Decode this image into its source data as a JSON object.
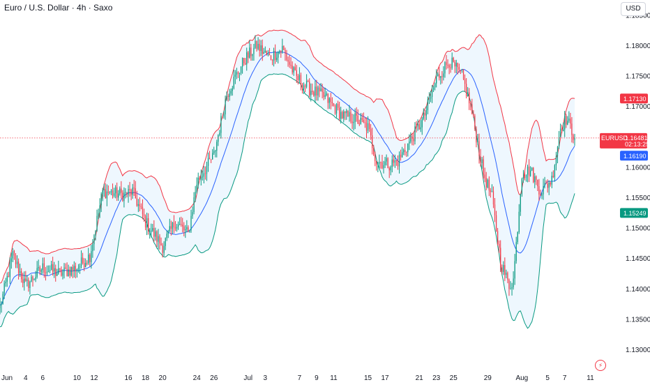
{
  "header": {
    "symbol_title": "Euro / U.S. Dollar · 4h · Saxo",
    "currency_button": "USD"
  },
  "colors": {
    "bull": "#089981",
    "bear": "#f23645",
    "upper_band": "#f23645",
    "lower_band": "#089981",
    "middle_band": "#2962ff",
    "band_fill": "#e3f2fd",
    "price_line": "#f23645",
    "upper_badge": "#f23645",
    "middle_badge": "#2962ff",
    "lower_badge": "#089981"
  },
  "icons": {
    "alert": "lightning-alert-icon"
  },
  "chart_data": {
    "type": "candlestick",
    "symbol": "EURUSD",
    "interval": "4h",
    "source": "Saxo",
    "ylim": [
      1.1265,
      1.1875
    ],
    "y_ticks": [
      {
        "value": 1.185,
        "label": "1.18500"
      },
      {
        "value": 1.18,
        "label": "1.18000"
      },
      {
        "value": 1.175,
        "label": "1.17500"
      },
      {
        "value": 1.17,
        "label": "1.17000"
      },
      {
        "value": 1.16,
        "label": "1.16000"
      },
      {
        "value": 1.155,
        "label": "1.15500"
      },
      {
        "value": 1.15,
        "label": "1.15000"
      },
      {
        "value": 1.145,
        "label": "1.14500"
      },
      {
        "value": 1.14,
        "label": "1.14000"
      },
      {
        "value": 1.135,
        "label": "1.13500"
      },
      {
        "value": 1.13,
        "label": "1.13000"
      }
    ],
    "x_ticks": [
      {
        "day": 0,
        "label": "Jun"
      },
      {
        "day": 3,
        "label": "4"
      },
      {
        "day": 5,
        "label": "6"
      },
      {
        "day": 9,
        "label": "10"
      },
      {
        "day": 11,
        "label": "12"
      },
      {
        "day": 15,
        "label": "16"
      },
      {
        "day": 17,
        "label": "18"
      },
      {
        "day": 19,
        "label": "20"
      },
      {
        "day": 23,
        "label": "24"
      },
      {
        "day": 25,
        "label": "26"
      },
      {
        "day": 29,
        "label": "Jul"
      },
      {
        "day": 31,
        "label": "3"
      },
      {
        "day": 35,
        "label": "7"
      },
      {
        "day": 37,
        "label": "9"
      },
      {
        "day": 39,
        "label": "11"
      },
      {
        "day": 43,
        "label": "15"
      },
      {
        "day": 45,
        "label": "17"
      },
      {
        "day": 49,
        "label": "21"
      },
      {
        "day": 51,
        "label": "23"
      },
      {
        "day": 53,
        "label": "25"
      },
      {
        "day": 57,
        "label": "29"
      },
      {
        "day": 61,
        "label": "Aug"
      },
      {
        "day": 64,
        "label": "5"
      },
      {
        "day": 66,
        "label": "7"
      },
      {
        "day": 69,
        "label": "11"
      }
    ],
    "last_price": {
      "label": "EURUSD",
      "value": 1.16481,
      "value_label": "1.16481",
      "countdown": "02:13:25"
    },
    "bollinger_badges": {
      "upper": {
        "value": 1.1713,
        "label": "1.17130"
      },
      "middle": {
        "value": 1.1619,
        "label": "1.16190"
      },
      "lower": {
        "value": 1.15249,
        "label": "1.15249"
      }
    },
    "trend_anchors": [
      [
        0,
        1.137
      ],
      [
        1.5,
        1.1455
      ],
      [
        3,
        1.1405
      ],
      [
        5,
        1.1435
      ],
      [
        7,
        1.1425
      ],
      [
        9,
        1.1435
      ],
      [
        10.5,
        1.1455
      ],
      [
        12,
        1.156
      ],
      [
        14.5,
        1.1555
      ],
      [
        15.5,
        1.156
      ],
      [
        17,
        1.151
      ],
      [
        19,
        1.147
      ],
      [
        20.5,
        1.151
      ],
      [
        22,
        1.149
      ],
      [
        23,
        1.1575
      ],
      [
        25,
        1.162
      ],
      [
        26.5,
        1.172
      ],
      [
        28.5,
        1.1775
      ],
      [
        30,
        1.18
      ],
      [
        31.5,
        1.178
      ],
      [
        33,
        1.1795
      ],
      [
        34.5,
        1.175
      ],
      [
        36,
        1.173
      ],
      [
        38,
        1.1715
      ],
      [
        40,
        1.1685
      ],
      [
        41.5,
        1.168
      ],
      [
        43,
        1.1665
      ],
      [
        44,
        1.161
      ],
      [
        45.5,
        1.1605
      ],
      [
        46.5,
        1.161
      ],
      [
        48,
        1.1645
      ],
      [
        49.5,
        1.168
      ],
      [
        51,
        1.1745
      ],
      [
        52.5,
        1.1775
      ],
      [
        54,
        1.175
      ],
      [
        55,
        1.17
      ],
      [
        56.5,
        1.159
      ],
      [
        57.5,
        1.155
      ],
      [
        58.5,
        1.1445
      ],
      [
        59.5,
        1.1405
      ],
      [
        60,
        1.1415
      ],
      [
        61,
        1.159
      ],
      [
        62,
        1.1595
      ],
      [
        63.2,
        1.156
      ],
      [
        64.5,
        1.158
      ],
      [
        65.5,
        1.1665
      ],
      [
        66.2,
        1.168
      ],
      [
        67.2,
        1.1648
      ]
    ],
    "candle_count": 404,
    "candles_per_day": 6,
    "bollinger": {
      "period": 20,
      "stddev": 2
    },
    "grid": false,
    "price_axis_position": "right",
    "time_axis_position": "bottom"
  }
}
